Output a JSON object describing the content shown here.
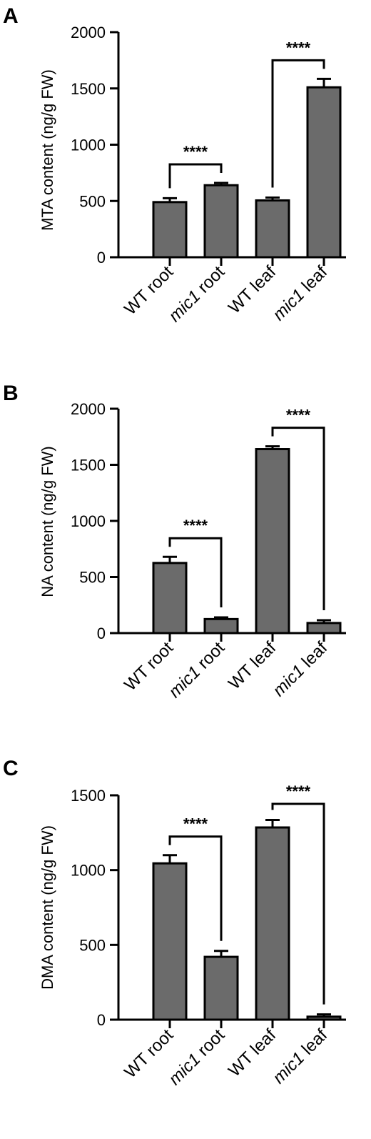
{
  "chart_data": [
    {
      "panel": "A",
      "type": "bar",
      "ylabel": "MTA content (ng/g FW)",
      "categories": [
        {
          "label": "WT root",
          "italic": "",
          "rest": "WT root"
        },
        {
          "label": "mic1 root",
          "italic": "mic1",
          "rest": " root"
        },
        {
          "label": "WT leaf",
          "italic": "",
          "rest": "WT leaf"
        },
        {
          "label": "mic1 leaf",
          "italic": "mic1",
          "rest": " leaf"
        }
      ],
      "values": [
        490,
        640,
        505,
        1510
      ],
      "errors": [
        35,
        20,
        25,
        75
      ],
      "ylim": [
        0,
        2000
      ],
      "yticks": [
        "0",
        "500",
        "1000",
        "1500",
        "2000"
      ],
      "comparisons": [
        {
          "from": 0,
          "to": 1,
          "label": "****"
        },
        {
          "from": 2,
          "to": 3,
          "label": "****"
        }
      ],
      "bar_color": "#6b6b6b"
    },
    {
      "panel": "B",
      "type": "bar",
      "ylabel": "NA content (ng/g FW)",
      "categories": [
        {
          "label": "WT root",
          "italic": "",
          "rest": "WT root"
        },
        {
          "label": "mic1 root",
          "italic": "mic1",
          "rest": " root"
        },
        {
          "label": "WT leaf",
          "italic": "",
          "rest": "WT leaf"
        },
        {
          "label": "mic1 leaf",
          "italic": "mic1",
          "rest": " leaf"
        }
      ],
      "values": [
        625,
        125,
        1640,
        90
      ],
      "errors": [
        55,
        15,
        25,
        25
      ],
      "ylim": [
        0,
        2000
      ],
      "yticks": [
        "0",
        "500",
        "1000",
        "1500",
        "2000"
      ],
      "comparisons": [
        {
          "from": 0,
          "to": 1,
          "label": "****"
        },
        {
          "from": 2,
          "to": 3,
          "label": "****"
        }
      ],
      "bar_color": "#6b6b6b"
    },
    {
      "panel": "C",
      "type": "bar",
      "ylabel": "DMA content (ng/g FW)",
      "categories": [
        {
          "label": "WT root",
          "italic": "",
          "rest": "WT root"
        },
        {
          "label": "mic1 root",
          "italic": "mic1",
          "rest": " root"
        },
        {
          "label": "WT leaf",
          "italic": "",
          "rest": "WT leaf"
        },
        {
          "label": "mic1 leaf",
          "italic": "mic1",
          "rest": " leaf"
        }
      ],
      "values": [
        1045,
        420,
        1285,
        20
      ],
      "errors": [
        55,
        40,
        50,
        15
      ],
      "ylim": [
        0,
        1500
      ],
      "yticks": [
        "0",
        "500",
        "1000",
        "1500"
      ],
      "comparisons": [
        {
          "from": 0,
          "to": 1,
          "label": "****"
        },
        {
          "from": 2,
          "to": 3,
          "label": "****"
        }
      ],
      "bar_color": "#6b6b6b"
    }
  ]
}
